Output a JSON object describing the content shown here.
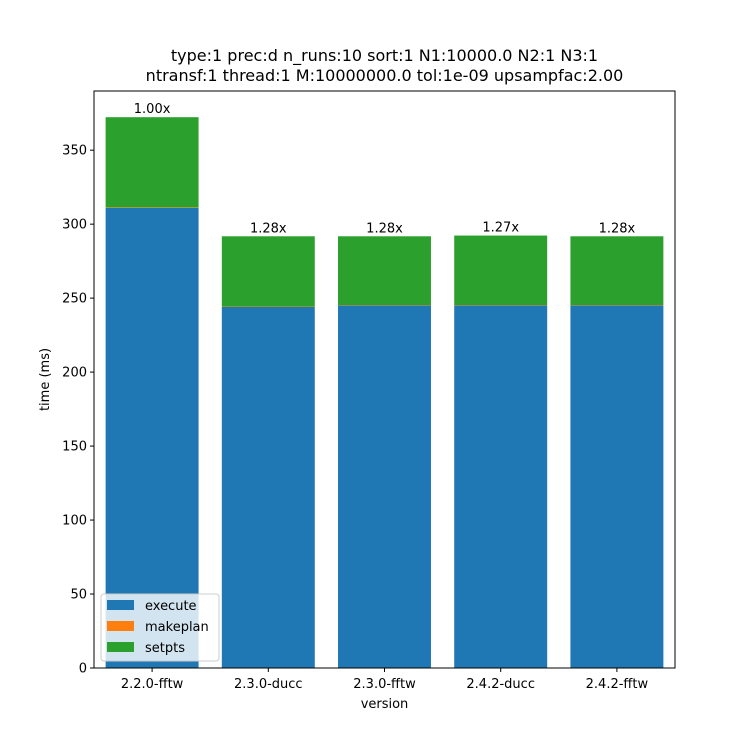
{
  "chart_data": {
    "type": "bar",
    "stacked": true,
    "title_lines": [
      "type:1 prec:d n_runs:10 sort:1 N1:10000.0 N2:1 N3:1",
      "ntransf:1 thread:1 M:10000000.0 tol:1e-09 upsampfac:2.00"
    ],
    "xlabel": "version",
    "ylabel": "time (ms)",
    "categories": [
      "2.2.0-fftw",
      "2.3.0-ducc",
      "2.3.0-fftw",
      "2.4.2-ducc",
      "2.4.2-fftw"
    ],
    "series": [
      {
        "name": "execute",
        "color": "#1f77b4",
        "values": [
          311,
          244,
          245,
          245,
          245
        ]
      },
      {
        "name": "makeplan",
        "color": "#ff7f0e",
        "values": [
          0.3,
          0.3,
          0.3,
          0.3,
          0.3
        ]
      },
      {
        "name": "setpts",
        "color": "#2ca02c",
        "values": [
          61,
          47.5,
          46.5,
          47,
          46.5
        ]
      }
    ],
    "bar_labels": [
      "1.00x",
      "1.28x",
      "1.28x",
      "1.27x",
      "1.28x"
    ],
    "ylim": [
      0,
      390
    ],
    "yticks": [
      0,
      50,
      100,
      150,
      200,
      250,
      300,
      350
    ],
    "legend_position": "lower-left",
    "grid": false
  }
}
